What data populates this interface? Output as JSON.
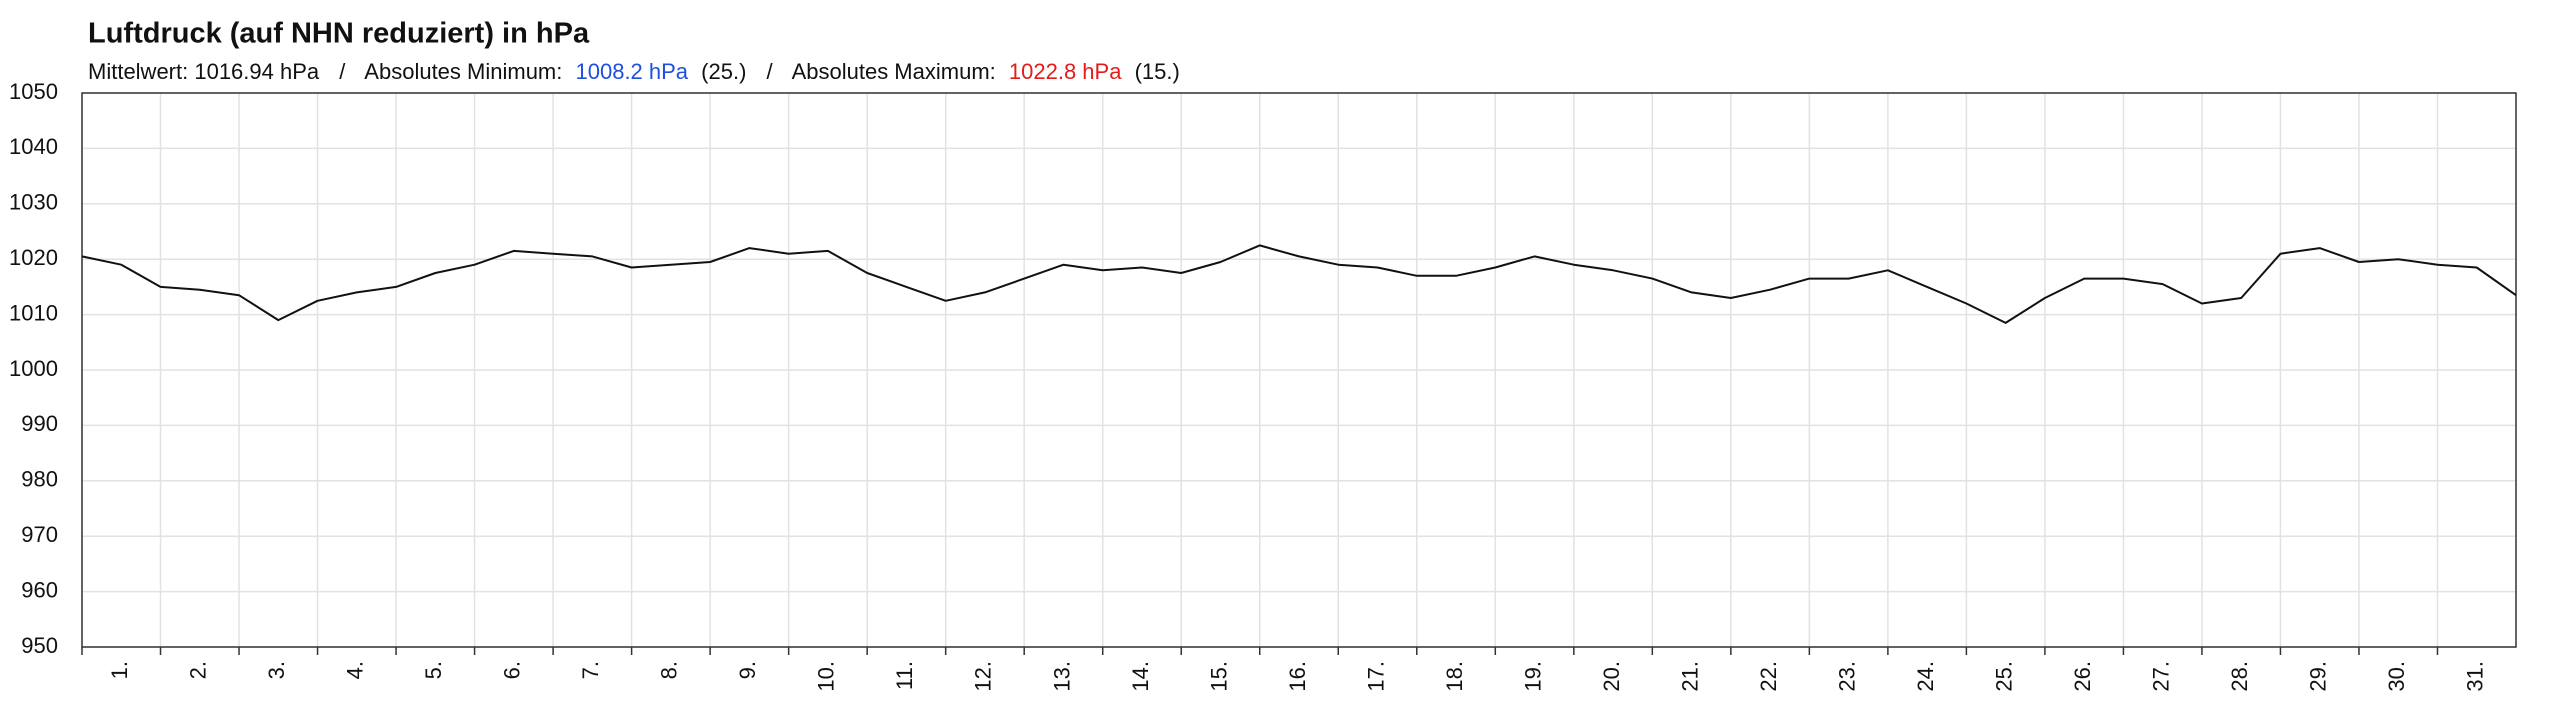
{
  "chart_data": {
    "type": "line",
    "title": "Luftdruck (auf NHN reduziert) in hPa",
    "subtitle": {
      "mean": "Mittelwert: 1016.94 hPa",
      "separator": "/",
      "min_label": "Absolutes Minimum:",
      "min_value": "1008.2 hPa",
      "min_day": "(25.)",
      "min_color": "#1f4fe0",
      "max_label": "Absolutes Maximum:",
      "max_value": "1022.8 hPa",
      "max_day": "(15.)",
      "max_color": "#e31b1b"
    },
    "x": [
      1,
      1.5,
      2,
      2.5,
      3,
      3.5,
      4,
      4.5,
      5,
      5.5,
      6,
      6.5,
      7,
      7.5,
      8,
      8.5,
      9,
      9.5,
      10,
      10.5,
      11,
      11.5,
      12,
      12.5,
      13,
      13.5,
      14,
      14.5,
      15,
      15.5,
      16,
      16.5,
      17,
      17.5,
      18,
      18.5,
      19,
      19.5,
      20,
      20.5,
      21,
      21.5,
      22,
      22.5,
      23,
      23.5,
      24,
      24.5,
      25,
      25.5,
      26,
      26.5,
      27,
      27.5,
      28,
      28.5,
      29,
      29.5,
      30,
      30.5,
      31,
      31.5,
      32
    ],
    "series": [
      {
        "color": "#111111",
        "values": [
          1020.5,
          1019,
          1015,
          1014.5,
          1013.5,
          1009,
          1012.5,
          1014,
          1015,
          1017.5,
          1019,
          1021.5,
          1021,
          1020.5,
          1018.5,
          1019,
          1019.5,
          1022,
          1021,
          1021.5,
          1017.5,
          1015,
          1012.5,
          1014,
          1016.5,
          1019,
          1018,
          1018.5,
          1017.5,
          1019.5,
          1022.5,
          1020.5,
          1019,
          1018.5,
          1017,
          1017,
          1018.5,
          1020.5,
          1019,
          1018,
          1016.5,
          1014,
          1013,
          1014.5,
          1016.5,
          1016.5,
          1018,
          1015,
          1012,
          1008.5,
          1013,
          1016.5,
          1016.5,
          1015.5,
          1012,
          1013,
          1021,
          1022,
          1019.5,
          1020,
          1019,
          1018.5,
          1013.5
        ]
      }
    ],
    "xlim": [
      1,
      32
    ],
    "xticks": [
      {
        "value": 1,
        "label": "1."
      },
      {
        "value": 2,
        "label": "2."
      },
      {
        "value": 3,
        "label": "3."
      },
      {
        "value": 4,
        "label": "4."
      },
      {
        "value": 5,
        "label": "5."
      },
      {
        "value": 6,
        "label": "6."
      },
      {
        "value": 7,
        "label": "7."
      },
      {
        "value": 8,
        "label": "8."
      },
      {
        "value": 9,
        "label": "9."
      },
      {
        "value": 10,
        "label": "10."
      },
      {
        "value": 11,
        "label": "11."
      },
      {
        "value": 12,
        "label": "12."
      },
      {
        "value": 13,
        "label": "13."
      },
      {
        "value": 14,
        "label": "14."
      },
      {
        "value": 15,
        "label": "15."
      },
      {
        "value": 16,
        "label": "16."
      },
      {
        "value": 17,
        "label": "17."
      },
      {
        "value": 18,
        "label": "18."
      },
      {
        "value": 19,
        "label": "19."
      },
      {
        "value": 20,
        "label": "20."
      },
      {
        "value": 21,
        "label": "21."
      },
      {
        "value": 22,
        "label": "22."
      },
      {
        "value": 23,
        "label": "23."
      },
      {
        "value": 24,
        "label": "24."
      },
      {
        "value": 25,
        "label": "25."
      },
      {
        "value": 26,
        "label": "26."
      },
      {
        "value": 27,
        "label": "27."
      },
      {
        "value": 28,
        "label": "28."
      },
      {
        "value": 29,
        "label": "29."
      },
      {
        "value": 30,
        "label": "30."
      },
      {
        "value": 31,
        "label": "31."
      }
    ],
    "ylim": [
      950,
      1050
    ],
    "yticks": [
      950,
      960,
      970,
      980,
      990,
      1000,
      1010,
      1020,
      1030,
      1040,
      1050
    ],
    "grid": true
  }
}
